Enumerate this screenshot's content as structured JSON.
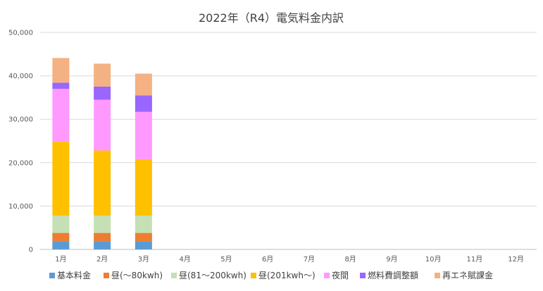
{
  "chart_data": {
    "type": "bar",
    "stacked": true,
    "title": "2022年（R4）電気料金内訳",
    "xlabel": "",
    "ylabel": "",
    "ylim": [
      0,
      50000
    ],
    "yticks": [
      "0",
      "10,000",
      "20,000",
      "30,000",
      "40,000",
      "50,000"
    ],
    "grid": true,
    "legend_position": "bottom",
    "categories": [
      "1月",
      "2月",
      "3月",
      "4月",
      "5月",
      "6月",
      "7月",
      "8月",
      "9月",
      "10月",
      "11月",
      "12月"
    ],
    "series": [
      {
        "name": "基本料金",
        "color": "#5b9bd5",
        "values": [
          1900,
          1900,
          1900,
          null,
          null,
          null,
          null,
          null,
          null,
          null,
          null,
          null
        ]
      },
      {
        "name": "昼(〜80kwh)",
        "color": "#ed7d31",
        "values": [
          1900,
          1900,
          1900,
          null,
          null,
          null,
          null,
          null,
          null,
          null,
          null,
          null
        ]
      },
      {
        "name": "昼(81〜200kwh)",
        "color": "#c5e0b4",
        "values": [
          4000,
          4000,
          4000,
          null,
          null,
          null,
          null,
          null,
          null,
          null,
          null,
          null
        ]
      },
      {
        "name": "昼(201kwh〜)",
        "color": "#ffc000",
        "values": [
          17000,
          15000,
          13000,
          null,
          null,
          null,
          null,
          null,
          null,
          null,
          null,
          null
        ]
      },
      {
        "name": "夜間",
        "color": "#ff99ff",
        "values": [
          12200,
          11700,
          10900,
          null,
          null,
          null,
          null,
          null,
          null,
          null,
          null,
          null
        ]
      },
      {
        "name": "燃料費調整額",
        "color": "#9966ff",
        "values": [
          1400,
          3000,
          3800,
          null,
          null,
          null,
          null,
          null,
          null,
          null,
          null,
          null
        ]
      },
      {
        "name": "再エネ賦課金",
        "color": "#f4b183",
        "values": [
          5700,
          5300,
          5000,
          null,
          null,
          null,
          null,
          null,
          null,
          null,
          null,
          null
        ]
      }
    ]
  }
}
